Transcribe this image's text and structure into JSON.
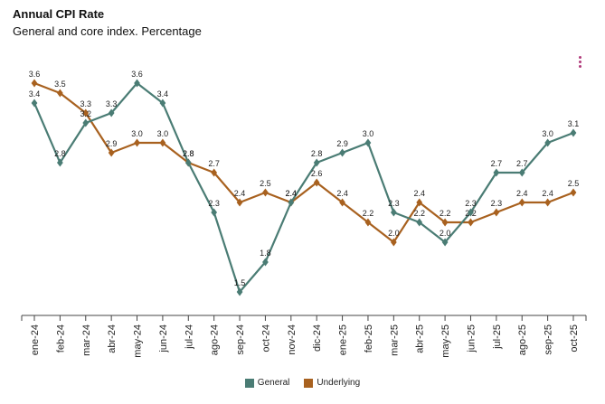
{
  "title": "Annual CPI Rate",
  "subtitle": "General and core index. Percentage",
  "menu_icon": "more-vertical-icon",
  "colors": {
    "general": "#4a7c74",
    "underlying": "#a8611f"
  },
  "chart_data": {
    "type": "line",
    "title": "Annual CPI Rate",
    "subtitle": "General and core index. Percentage",
    "categories": [
      "ene-24",
      "feb-24",
      "mar-24",
      "abr-24",
      "may-24",
      "jun-24",
      "jul-24",
      "ago-24",
      "sep-24",
      "oct-24",
      "nov-24",
      "dic-24",
      "ene-25",
      "feb-25",
      "mar-25",
      "abr-25",
      "may-25",
      "jun-25",
      "jul-25",
      "ago-25",
      "sep-25",
      "oct-25"
    ],
    "series": [
      {
        "name": "General",
        "color": "#4a7c74",
        "values": [
          3.4,
          2.8,
          3.2,
          3.3,
          3.6,
          3.4,
          2.8,
          2.3,
          1.5,
          1.8,
          2.4,
          2.8,
          2.9,
          3.0,
          2.3,
          2.2,
          2.0,
          2.3,
          2.7,
          2.7,
          3.0,
          3.1
        ],
        "labels": [
          "3.4",
          "2.8",
          "3.2",
          "3.3",
          "3.6",
          "3.4",
          "2.8",
          "2.3",
          "1.5",
          "1.8",
          "2.4",
          "2.8",
          "2.9",
          "3.0",
          "2.3",
          "2.2",
          "2.0",
          "2.3",
          "2.7",
          "2.7",
          "3.0",
          "3.1"
        ]
      },
      {
        "name": "Underlying",
        "color": "#a8611f",
        "values": [
          3.6,
          3.5,
          3.3,
          2.9,
          3.0,
          3.0,
          2.8,
          2.7,
          2.4,
          2.5,
          2.4,
          2.6,
          2.4,
          2.2,
          2.0,
          2.4,
          2.2,
          2.2,
          2.3,
          2.4,
          2.4,
          2.5
        ],
        "labels": [
          "3.6",
          "3.5",
          "3.3",
          "2.9",
          "3.0",
          "3.0",
          "2.8",
          "2.7",
          "2.4",
          "2.5",
          "2.4",
          "2.6",
          "2.4",
          "2.2",
          "2.0",
          "2.4",
          "2.2",
          "2.2",
          "2.3",
          "2.4",
          "2.4",
          "2.5"
        ]
      }
    ],
    "ylim": [
      1.3,
      3.8
    ],
    "grid": false,
    "legend_position": "bottom-center",
    "marker": "diamond",
    "data_labels": true
  },
  "legend": [
    {
      "label": "General",
      "color": "#4a7c74"
    },
    {
      "label": "Underlying",
      "color": "#a8611f"
    }
  ]
}
